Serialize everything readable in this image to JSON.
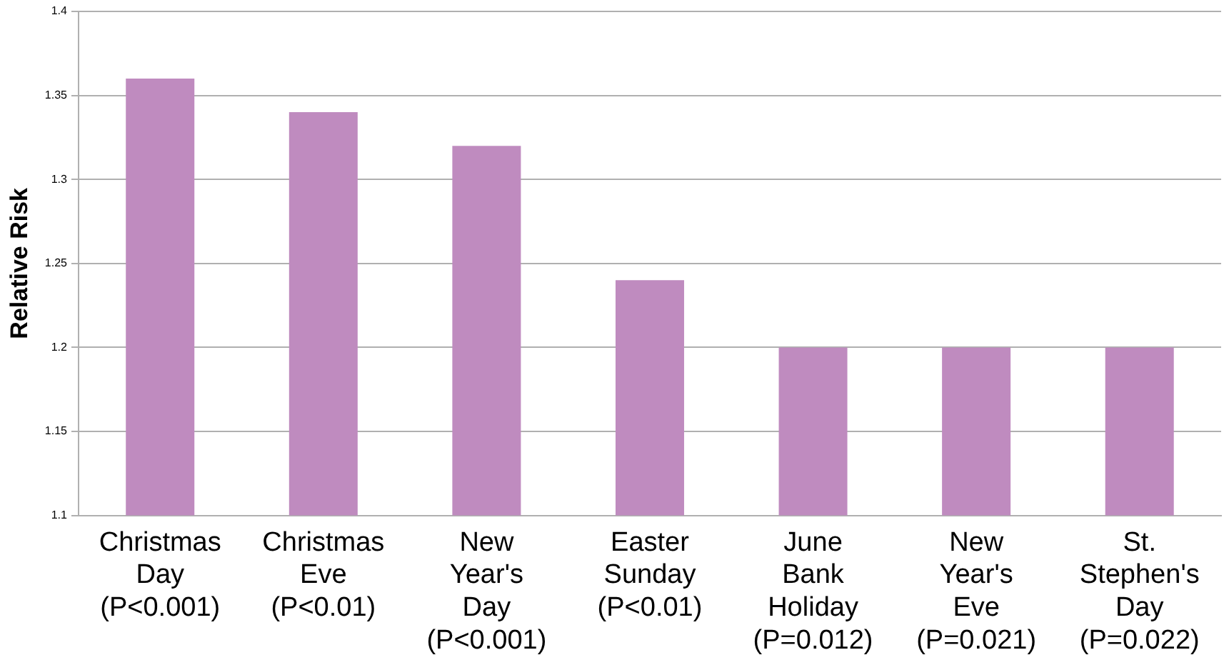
{
  "chart_data": {
    "type": "bar",
    "ylabel": "Relative Risk",
    "categories": [
      "Christmas\nDay\n(P<0.001)",
      "Christmas\nEve\n(P<0.01)",
      "New\nYear's\nDay\n(P<0.001)",
      "Easter\nSunday\n(P<0.01)",
      "June\nBank\nHoliday\n(P=0.012)",
      "New\nYear's\nEve\n(P=0.021)",
      "St.\nStephen's\nDay\n(P=0.022)"
    ],
    "values": [
      1.36,
      1.34,
      1.32,
      1.24,
      1.2,
      1.2,
      1.2
    ],
    "color": "#bf8bbf",
    "ylim": [
      1.1,
      1.4
    ],
    "yticks": [
      1.1,
      1.15,
      1.2,
      1.25,
      1.3,
      1.35,
      1.4
    ],
    "grid": "y",
    "legend": false
  }
}
